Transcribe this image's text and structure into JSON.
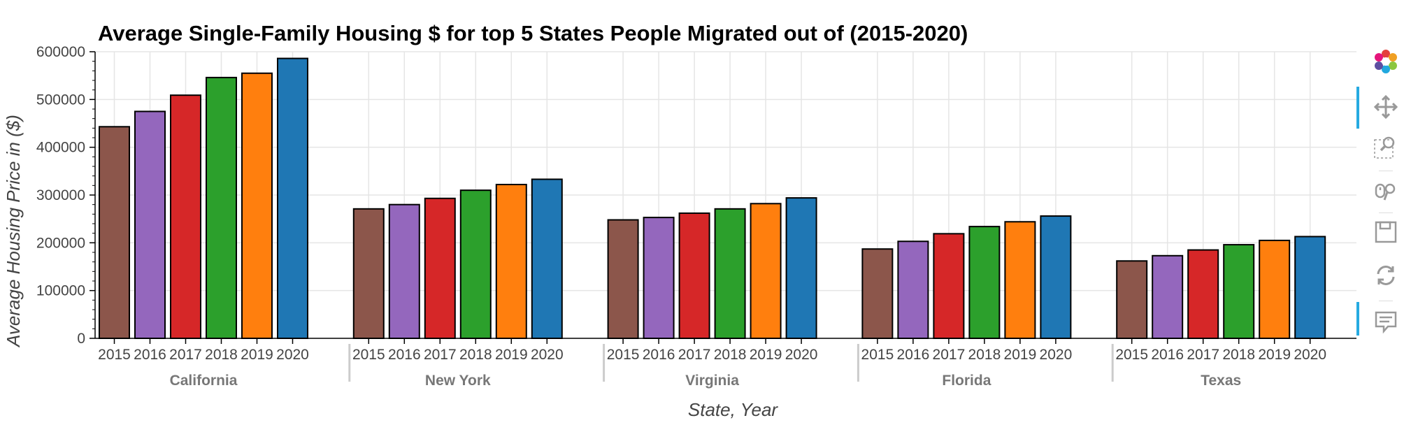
{
  "chart_data": {
    "type": "bar",
    "title": "Average Single-Family Housing $ for top 5 States People Migrated out of (2015-2020)",
    "xlabel": "State, Year",
    "ylabel": "Average Housing Price in ($)",
    "ylim": [
      0,
      600000
    ],
    "yticks": [
      "0",
      "100000",
      "200000",
      "300000",
      "400000",
      "500000",
      "600000"
    ],
    "grid": true,
    "years": [
      "2015",
      "2016",
      "2017",
      "2018",
      "2019",
      "2020"
    ],
    "year_colors": [
      "#8c564b",
      "#9467bd",
      "#d62728",
      "#2ca02c",
      "#ff7f0e",
      "#1f77b4"
    ],
    "groups": [
      {
        "name": "California",
        "values": [
          443000,
          475000,
          509000,
          546000,
          555000,
          586000
        ]
      },
      {
        "name": "New York",
        "values": [
          271000,
          280000,
          293000,
          310000,
          322000,
          333000
        ]
      },
      {
        "name": "Virginia",
        "values": [
          248000,
          253000,
          262000,
          271000,
          282000,
          294000
        ]
      },
      {
        "name": "Florida",
        "values": [
          187000,
          203000,
          219000,
          234000,
          244000,
          256000
        ]
      },
      {
        "name": "Texas",
        "values": [
          162000,
          173000,
          185000,
          196000,
          205000,
          213000
        ]
      }
    ]
  },
  "toolbar": {
    "tools": [
      "bokeh-logo-icon",
      "pan-icon",
      "box-zoom-icon",
      "wheel-zoom-icon",
      "save-icon",
      "reset-icon",
      "hover-icon"
    ]
  }
}
